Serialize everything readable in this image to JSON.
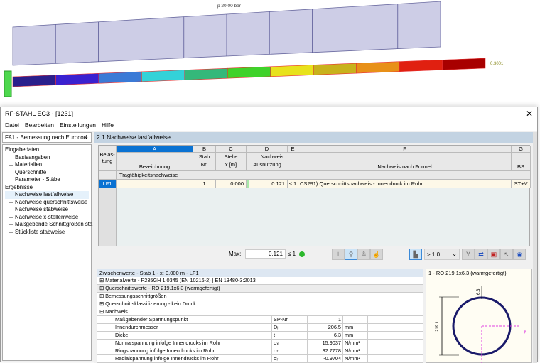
{
  "viewport": {
    "load_label": "p 20.00 bar",
    "max_label": "0.3001",
    "colors": [
      "#2a1f8c",
      "#3a21d0",
      "#3b7ad6",
      "#33d2d8",
      "#34b87a",
      "#3fd22a",
      "#e8e21c",
      "#c8b21c",
      "#e89018",
      "#e02010",
      "#a80000"
    ]
  },
  "window": {
    "title": "RF-STAHL EC3 - [1231]",
    "close_icon": "close-icon"
  },
  "menu": [
    "Datei",
    "Bearbeiten",
    "Einstellungen",
    "Hilfe"
  ],
  "sidebar": {
    "select": "FA1 - Bemessung nach Eurocod",
    "groups": [
      {
        "label": "Eingabedaten",
        "items": [
          "Basisangaben",
          "Materialien",
          "Querschnitte",
          "Parameter - Stäbe"
        ]
      },
      {
        "label": "Ergebnisse",
        "items": [
          "Nachweise lastfallweise",
          "Nachweise querschnittsweise",
          "Nachweise stabweise",
          "Nachweise x-stellenweise",
          "Maßgebende Schnittgrößen sta",
          "Stückliste stabweise"
        ]
      }
    ]
  },
  "main": {
    "title": "2.1 Nachweise lastfallweise",
    "table": {
      "col_letters": [
        "A",
        "B",
        "C",
        "D",
        "E",
        "F",
        "G"
      ],
      "headers": {
        "belastung": "Belas-\ntung",
        "a": "Bezeichnung",
        "b1": "Stab",
        "b2": "Nr.",
        "c1": "Stelle",
        "c2": "x [m]",
        "d1": "Nachweis",
        "d2": "Ausnutzung",
        "f": "Nachweis nach Formel",
        "g": "BS"
      },
      "group": "Tragfähigkeitsnachweise",
      "rows": [
        {
          "belastung": "LF1",
          "bezeichnung": "",
          "stab": "1",
          "stelle": "0.000",
          "ausnutzung": "0.121",
          "e": "≤ 1",
          "formel": "CS291) Querschnittsnachweis - Innendruck im Rohr",
          "bs": "ST+V"
        }
      ]
    },
    "max": {
      "label": "Max:",
      "value": "0.121",
      "le": "≤ 1",
      "status_color": "#2db82d"
    },
    "filter_select": "> 1,0"
  },
  "zwischenwerte": {
    "title": "Zwischenwerte - Stab 1 - x: 0.000 m - LF1",
    "sections": [
      "Materialwerte - P235GH 1.0345 (EN 10216-2) | EN 13480-3:2013",
      "Querschnittswerte  -  RO 219.1x6.3 (warmgefertigt)",
      "Bemessungsschnittgrößen",
      "Querschnittsklassifizierung - kein Druck",
      "Nachweis"
    ],
    "rows": [
      {
        "label": "Maßgebender Spannungspunkt",
        "sym": "SP-Nr.",
        "value": "1",
        "unit": ""
      },
      {
        "label": "Innendurchmesser",
        "sym": "Dᵢ",
        "value": "206.5",
        "unit": "mm"
      },
      {
        "label": "Dicke",
        "sym": "t",
        "value": "6.3",
        "unit": "mm"
      },
      {
        "label": "Normalspannung infolge Innendrucks im Rohr",
        "sym": "σₓ",
        "value": "15.9037",
        "unit": "N/mm²"
      },
      {
        "label": "Ringspannung infolge Innendrucks im Rohr",
        "sym": "σₜ",
        "value": "32.7778",
        "unit": "N/mm²"
      },
      {
        "label": "Radialspannung infolge Innendrucks im Rohr",
        "sym": "σᵣ",
        "value": "-0.9704",
        "unit": "N/mm²"
      }
    ]
  },
  "cross_section": {
    "title": "1 - RO 219.1x6.3 (warmgefertigt)",
    "dim_height": "219.1",
    "dim_thickness": "6.3",
    "axis_y": "y"
  }
}
